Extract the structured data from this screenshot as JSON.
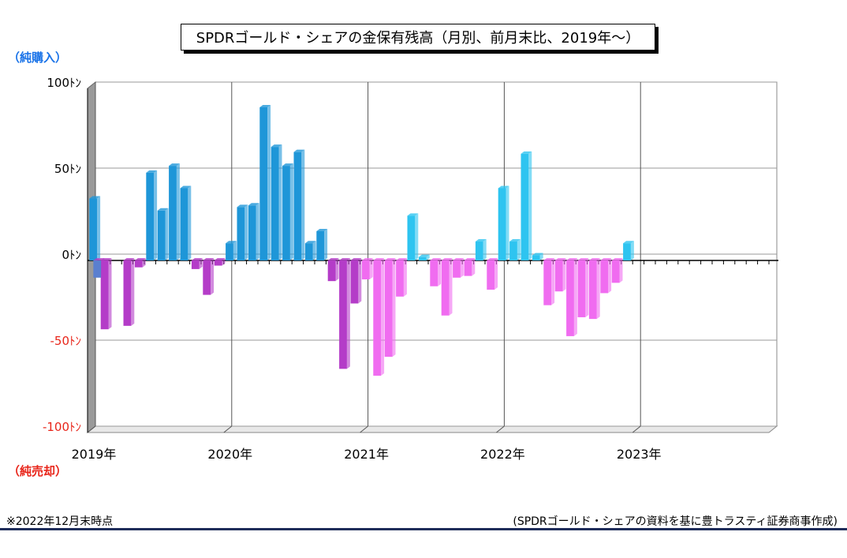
{
  "title": "SPDRゴールド・シェアの金保有残高（月別、前月末比、2019年～）",
  "side_labels": {
    "buy": "（純購入）",
    "sell": "（純売却）"
  },
  "footer": {
    "note": "※2022年12月末時点",
    "source": "(SPDRゴールド・シェアの資料を基に豊トラスティ証券商事作成)"
  },
  "colors": {
    "positive_2019_2020": "#1e96d8",
    "positive_2021_2022": "#2ec4f0",
    "negative_2019_2020": "#b43cc8",
    "negative_2021_2022": "#f06cf0",
    "negative_label": "#e8251a"
  },
  "chart_data": {
    "type": "bar",
    "y_tick_labels": [
      {
        "value": 100,
        "label": "100ﾄﾝ"
      },
      {
        "value": 50,
        "label": "50ﾄﾝ"
      },
      {
        "value": 0,
        "label": "0ﾄﾝ"
      },
      {
        "value": -50,
        "label": "-50ﾄﾝ"
      },
      {
        "value": -100,
        "label": "-100ﾄﾝ"
      }
    ],
    "year_labels": [
      "2019年",
      "2020年",
      "2021年",
      "2022年",
      "2023年"
    ],
    "ylim": [
      -100,
      100
    ],
    "grid": true,
    "series": [
      {
        "values": [
          36,
          -40,
          0,
          -38,
          -4,
          51,
          29,
          55,
          42,
          -5,
          -20,
          -3,
          10,
          31,
          32,
          89,
          66,
          55,
          63,
          10,
          17,
          -12,
          -63,
          -25,
          -11,
          -67,
          -56,
          -21,
          26,
          2,
          -15,
          -32,
          -10,
          -9,
          11,
          -17,
          42,
          11,
          62,
          3,
          -26,
          -18,
          -44,
          -33,
          -34,
          -19,
          -13,
          10
        ],
        "secondary_values": [
          -10,
          0,
          0,
          0,
          0,
          0,
          0,
          0,
          0,
          0,
          0,
          0,
          0,
          0,
          0,
          0,
          0,
          0,
          0,
          0,
          0,
          0,
          0,
          0,
          0,
          0,
          0,
          0,
          0,
          0,
          0,
          0,
          0,
          0,
          0,
          0,
          0,
          0,
          0,
          0,
          0,
          0,
          0,
          0,
          0,
          0,
          0,
          0
        ]
      }
    ]
  }
}
